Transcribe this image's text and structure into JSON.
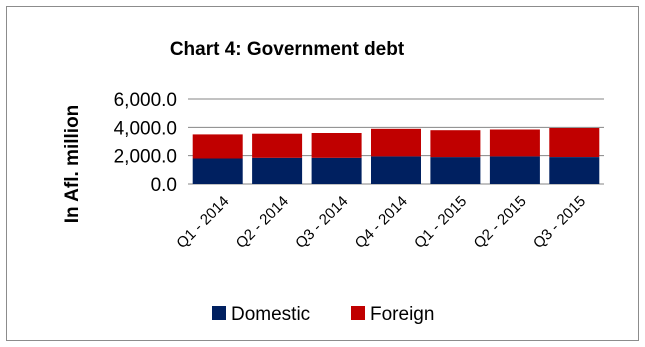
{
  "chart_data": {
    "type": "bar",
    "stacked": true,
    "title": "Chart 4: Government debt",
    "ylabel": "In Afl. million",
    "xlabel": "",
    "categories": [
      "Q1 - 2014",
      "Q2 - 2014",
      "Q3 - 2014",
      "Q4 - 2014",
      "Q1 - 2015",
      "Q2 - 2015",
      "Q3 - 2015"
    ],
    "series": [
      {
        "name": "Domestic",
        "color": "#002060",
        "values": [
          1800,
          1850,
          1850,
          1950,
          1900,
          1950,
          1900
        ]
      },
      {
        "name": "Foreign",
        "color": "#c00000",
        "values": [
          1700,
          1700,
          1750,
          1950,
          1900,
          1900,
          2050
        ]
      }
    ],
    "ylim": [
      0,
      6000
    ],
    "yticks": [
      "0.0",
      "2,000.0",
      "4,000.0",
      "6,000.0"
    ],
    "ytick_values": [
      0,
      2000,
      4000,
      6000
    ],
    "grid": true,
    "legend": "bottom"
  }
}
